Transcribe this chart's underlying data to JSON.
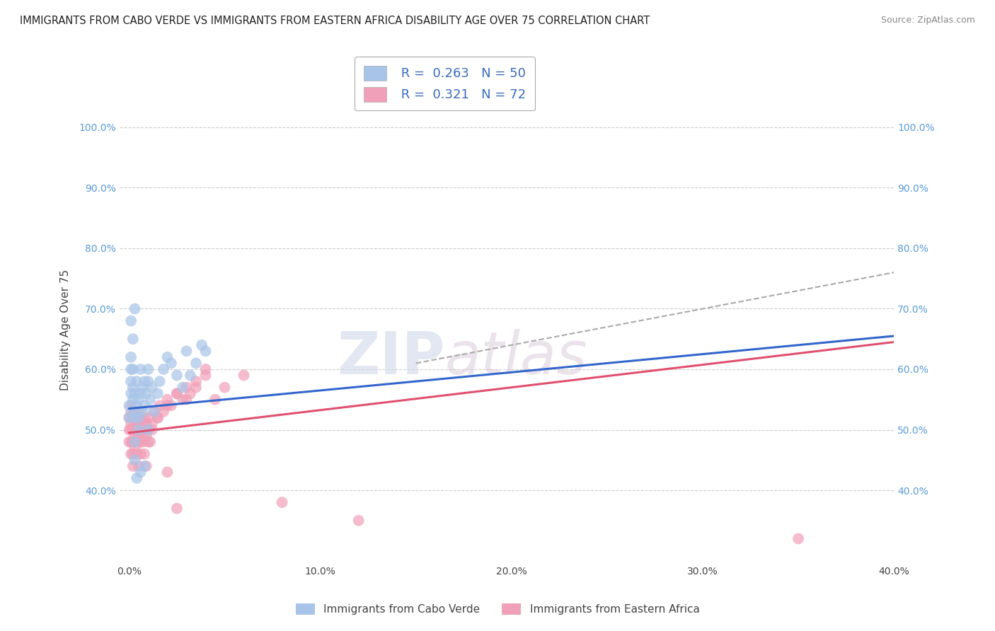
{
  "title": "IMMIGRANTS FROM CABO VERDE VS IMMIGRANTS FROM EASTERN AFRICA DISABILITY AGE OVER 75 CORRELATION CHART",
  "source": "Source: ZipAtlas.com",
  "ylabel": "Disability Age Over 75",
  "xlabel": "",
  "watermark_zip": "ZIP",
  "watermark_atlas": "atlas",
  "series1": {
    "name": "Immigrants from Cabo Verde",
    "color": "#a8c4e8",
    "line_color": "#3366cc",
    "line_dash": "dashed",
    "R": 0.263,
    "N": 50,
    "x": [
      0.0,
      0.0,
      0.001,
      0.001,
      0.001,
      0.001,
      0.002,
      0.002,
      0.002,
      0.002,
      0.003,
      0.003,
      0.003,
      0.004,
      0.004,
      0.005,
      0.005,
      0.005,
      0.006,
      0.006,
      0.007,
      0.007,
      0.008,
      0.008,
      0.009,
      0.01,
      0.01,
      0.011,
      0.012,
      0.013,
      0.015,
      0.016,
      0.018,
      0.02,
      0.022,
      0.025,
      0.028,
      0.03,
      0.032,
      0.035,
      0.038,
      0.04,
      0.001,
      0.002,
      0.003,
      0.003,
      0.004,
      0.006,
      0.008,
      0.01
    ],
    "y": [
      0.52,
      0.54,
      0.58,
      0.6,
      0.56,
      0.62,
      0.55,
      0.53,
      0.57,
      0.6,
      0.52,
      0.56,
      0.48,
      0.54,
      0.58,
      0.5,
      0.52,
      0.55,
      0.56,
      0.6,
      0.53,
      0.57,
      0.54,
      0.58,
      0.56,
      0.6,
      0.58,
      0.55,
      0.57,
      0.53,
      0.56,
      0.58,
      0.6,
      0.62,
      0.61,
      0.59,
      0.57,
      0.63,
      0.59,
      0.61,
      0.64,
      0.63,
      0.68,
      0.65,
      0.7,
      0.45,
      0.42,
      0.43,
      0.44,
      0.5
    ]
  },
  "series2": {
    "name": "Immigrants from Eastern Africa",
    "color": "#f0a0b8",
    "line_color": "#e05070",
    "line_dash": "solid",
    "R": 0.321,
    "N": 72,
    "x": [
      0.0,
      0.0,
      0.0,
      0.001,
      0.001,
      0.001,
      0.001,
      0.001,
      0.002,
      0.002,
      0.002,
      0.002,
      0.003,
      0.003,
      0.003,
      0.003,
      0.004,
      0.004,
      0.004,
      0.005,
      0.005,
      0.005,
      0.006,
      0.006,
      0.006,
      0.007,
      0.007,
      0.008,
      0.008,
      0.009,
      0.009,
      0.01,
      0.01,
      0.011,
      0.012,
      0.013,
      0.015,
      0.016,
      0.018,
      0.02,
      0.022,
      0.025,
      0.028,
      0.03,
      0.032,
      0.035,
      0.04,
      0.045,
      0.05,
      0.06,
      0.001,
      0.002,
      0.003,
      0.004,
      0.005,
      0.006,
      0.007,
      0.008,
      0.009,
      0.01,
      0.012,
      0.015,
      0.02,
      0.025,
      0.03,
      0.035,
      0.04,
      0.02,
      0.025,
      0.08,
      0.12,
      0.35
    ],
    "y": [
      0.52,
      0.5,
      0.48,
      0.51,
      0.53,
      0.5,
      0.48,
      0.54,
      0.52,
      0.5,
      0.48,
      0.46,
      0.53,
      0.51,
      0.49,
      0.47,
      0.52,
      0.5,
      0.48,
      0.51,
      0.53,
      0.49,
      0.5,
      0.52,
      0.48,
      0.51,
      0.49,
      0.52,
      0.5,
      0.51,
      0.49,
      0.52,
      0.5,
      0.48,
      0.51,
      0.53,
      0.52,
      0.54,
      0.53,
      0.55,
      0.54,
      0.56,
      0.55,
      0.57,
      0.56,
      0.58,
      0.6,
      0.55,
      0.57,
      0.59,
      0.46,
      0.44,
      0.48,
      0.46,
      0.44,
      0.46,
      0.48,
      0.46,
      0.44,
      0.48,
      0.5,
      0.52,
      0.54,
      0.56,
      0.55,
      0.57,
      0.59,
      0.43,
      0.37,
      0.38,
      0.35,
      0.32
    ]
  },
  "trend1_x0": 0.0,
  "trend1_y0": 0.535,
  "trend1_x1": 0.4,
  "trend1_y1": 0.655,
  "trend2_x0": 0.0,
  "trend2_y0": 0.495,
  "trend2_x1": 0.4,
  "trend2_y1": 0.645,
  "dashed_line_x0": 0.15,
  "dashed_line_y0": 0.61,
  "dashed_line_x1": 0.4,
  "dashed_line_y1": 0.76,
  "xlim": [
    -0.005,
    0.4
  ],
  "ylim": [
    0.28,
    1.05
  ],
  "xticks": [
    0.0,
    0.1,
    0.2,
    0.3,
    0.4
  ],
  "xtick_labels": [
    "0.0%",
    "10.0%",
    "20.0%",
    "30.0%",
    "40.0%"
  ],
  "yticks": [
    0.4,
    0.5,
    0.6,
    0.7,
    0.8,
    0.9,
    1.0
  ],
  "ytick_labels": [
    "40.0%",
    "50.0%",
    "60.0%",
    "70.0%",
    "80.0%",
    "90.0%",
    "100.0%"
  ],
  "grid_color": "#cccccc",
  "bg_color": "#ffffff"
}
